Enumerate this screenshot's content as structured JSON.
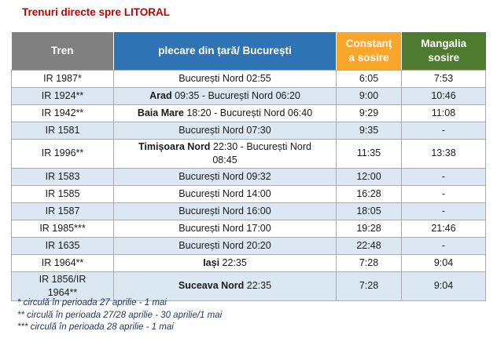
{
  "title": "Trenuri directe spre LITORAL",
  "colors": {
    "title_red": "#C00000",
    "header_gray": "#808080",
    "header_blue": "#2E74B5",
    "header_orange": "#F9A62D",
    "header_green": "#4F7B31",
    "band_blue": "#DBE8F4",
    "border_gray": "#ABABAB",
    "footnote_navy": "#1F3864"
  },
  "table": {
    "headers": [
      {
        "line1": "Tren",
        "line2": ""
      },
      {
        "line1": "plecare din țară/ București",
        "line2": ""
      },
      {
        "line1": "Constanț",
        "line2": "a sosire"
      },
      {
        "line1": "Mangalia",
        "line2": "sosire"
      }
    ],
    "rows": [
      {
        "train": "IR 1987*",
        "train_line2": "",
        "dep_bold": "",
        "dep_text": "București Nord 02:55",
        "dep_line2": "",
        "constanta": "6:05",
        "mangalia": "7:53"
      },
      {
        "train": "IR 1924**",
        "train_line2": "",
        "dep_bold": "Arad",
        "dep_text": " 09:35 - București Nord 06:20",
        "dep_line2": "",
        "constanta": "9:00",
        "mangalia": "10:46"
      },
      {
        "train": "IR 1942**",
        "train_line2": "",
        "dep_bold": "Baia Mare",
        "dep_text": " 18:20 - București Nord 06:40",
        "dep_line2": "",
        "constanta": "9:29",
        "mangalia": "11:08"
      },
      {
        "train": "IR 1581",
        "train_line2": "",
        "dep_bold": "",
        "dep_text": "București Nord 07:30",
        "dep_line2": "",
        "constanta": "9:35",
        "mangalia": "-"
      },
      {
        "train": "IR 1996**",
        "train_line2": "",
        "dep_bold": "Timișoara Nord",
        "dep_text": " 22:30 - București Nord",
        "dep_line2": "08:45",
        "constanta": "11:35",
        "mangalia": "13:38"
      },
      {
        "train": "IR 1583",
        "train_line2": "",
        "dep_bold": "",
        "dep_text": "București Nord 09:32",
        "dep_line2": "",
        "constanta": "12:00",
        "mangalia": "-"
      },
      {
        "train": "IR 1585",
        "train_line2": "",
        "dep_bold": "",
        "dep_text": "București Nord 14:00",
        "dep_line2": "",
        "constanta": "16:28",
        "mangalia": "-"
      },
      {
        "train": "IR 1587",
        "train_line2": "",
        "dep_bold": "",
        "dep_text": "București Nord 16:00",
        "dep_line2": "",
        "constanta": "18:05",
        "mangalia": "-"
      },
      {
        "train": "IR 1985***",
        "train_line2": "",
        "dep_bold": "",
        "dep_text": "București Nord 17:00",
        "dep_line2": "",
        "constanta": "19:28",
        "mangalia": "21:46"
      },
      {
        "train": "IR 1635",
        "train_line2": "",
        "dep_bold": "",
        "dep_text": "București Nord 20:20",
        "dep_line2": "",
        "constanta": "22:48",
        "mangalia": "-"
      },
      {
        "train": "IR 1964**",
        "train_line2": "",
        "dep_bold": "Iași",
        "dep_text": " 22:35",
        "dep_line2": "",
        "constanta": "7:28",
        "mangalia": "9:04"
      },
      {
        "train": "IR 1856/IR",
        "train_line2": "1964**",
        "dep_bold": "Suceava Nord",
        "dep_text": " 22:35",
        "dep_line2": "",
        "constanta": "7:28",
        "mangalia": "9:04"
      }
    ]
  },
  "footnotes": [
    "* circulă în perioada 27 aprilie - 1 mai",
    "** circulă în perioada 27/28 aprilie - 30 aprilie/1 mai",
    "*** circulă în perioada 28 aprilie - 1 mai"
  ]
}
